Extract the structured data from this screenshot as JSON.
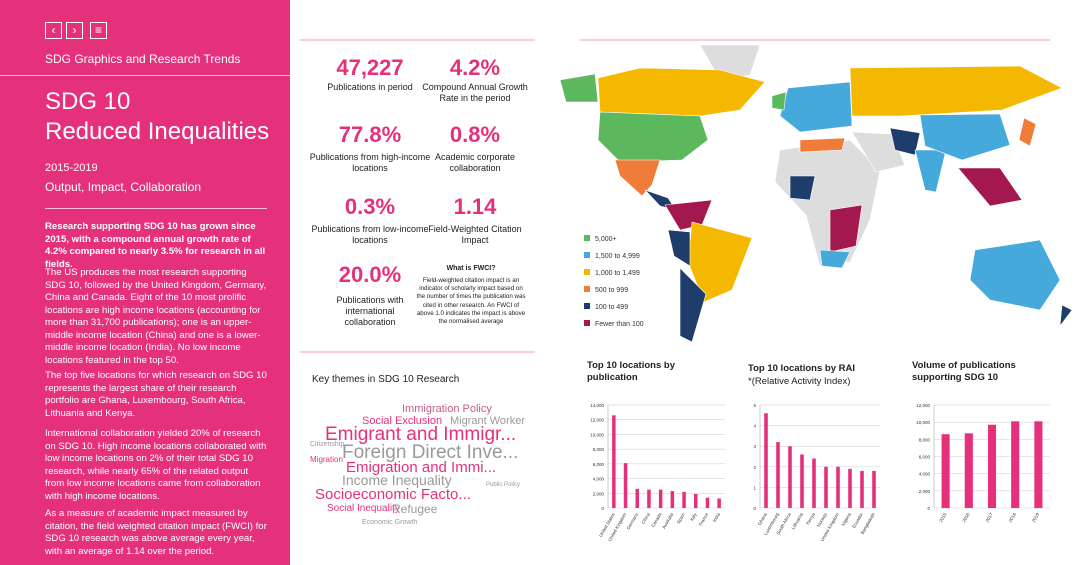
{
  "header": {
    "series": "SDG Graphics and Research Trends",
    "title_line1": "SDG 10",
    "title_line2": "Reduced Inequalities",
    "period": "2015-2019",
    "subtitle": "Output, Impact, Collaboration"
  },
  "intro": {
    "lead": "Research supporting SDG 10 has grown since 2015, with a compound annual growth rate of 4.2% compared to nearly 3.5% for research in all fields.",
    "paragraphs": [
      "The US produces the most research supporting SDG 10, followed by the United Kingdom, Germany, China and Canada. Eight of the 10 most prolific locations are high income locations (accounting for more than 31,700 publications); one is an upper-middle income location (China) and one is a lower-middle income location (India). No low income locations featured in the top 50.",
      "The top five locations for which research on SDG 10 represents the largest share of their research portfolio are Ghana, Luxembourg, South Africa, Lithuania and Kenya.",
      "International collaboration yielded 20% of research on SDG 10. High income locations collaborated with low income locations on 2% of their total SDG 10 research, while nearly 65% of the related output from low income locations came from collaboration with high income locations.",
      "As a measure of academic impact measured by citation, the field weighted citation impact (FWCI) for SDG 10 research was above average every year, with an average of 1.14 over the period."
    ]
  },
  "stats": [
    {
      "value": "47,227",
      "label": "Publications in period"
    },
    {
      "value": "4.2%",
      "label": "Compound Annual Growth Rate in the period"
    },
    {
      "value": "77.8%",
      "label": "Publications from high-income locations"
    },
    {
      "value": "0.8%",
      "label": "Academic corporate collaboration"
    },
    {
      "value": "0.3%",
      "label": "Publications from low-income locations"
    },
    {
      "value": "1.14",
      "label": "Field-Weighted Citation Impact"
    },
    {
      "value": "20.0%",
      "label": "Publications with international collaboration"
    }
  ],
  "fwci_note": {
    "title": "What is FWCI?",
    "text": "Field-weighted citation impact is an indicator of scholarly impact based on the number of times the publication was cited in other research. An FWCI of above 1.0 indicates the impact is above the normalised average"
  },
  "map_legend": [
    {
      "label": "5,000+",
      "color": "#5cb85c"
    },
    {
      "label": "1,500 to 4,999",
      "color": "#45a9dc"
    },
    {
      "label": "1,000 to 1,499",
      "color": "#f5b800"
    },
    {
      "label": "500 to 999",
      "color": "#f07c3a"
    },
    {
      "label": "100 to 499",
      "color": "#1f3d6b"
    },
    {
      "label": "Fewer than 100",
      "color": "#a3194f"
    }
  ],
  "word_cloud": {
    "title": "Key themes in SDG 10 Research",
    "words": [
      "Immigration Policy",
      "Social Exclusion",
      "Migrant Worker",
      "Emigrant and Immigr...",
      "Foreign Direct Inve...",
      "Emigration and Immi...",
      "Income Inequality",
      "Socioeconomic Facto...",
      "Social Inequality",
      "Refugee",
      "Migration",
      "Citizenship",
      "Economic Growth",
      "Public Policy"
    ]
  },
  "chart_data": [
    {
      "type": "bar",
      "title": "Top 10 locations by publication",
      "color": "#e5317c",
      "grid": true,
      "categories": [
        "United States",
        "United Kingdom",
        "Germany",
        "China",
        "Canada",
        "Australia",
        "Spain",
        "Italy",
        "France",
        "India"
      ],
      "values": [
        12600,
        6100,
        2600,
        2500,
        2500,
        2300,
        2200,
        1900,
        1400,
        1300
      ],
      "ylim": [
        0,
        14000
      ],
      "yticks": [
        0,
        {
          "value": 2000,
          "label": "2,000"
        },
        {
          "value": 4000,
          "label": "4,000"
        },
        {
          "value": 6000,
          "label": "6,000"
        },
        {
          "value": 8000,
          "label": "8,000"
        },
        {
          "value": 10000,
          "label": "10,000"
        },
        {
          "value": 12000,
          "label": "12,000"
        },
        {
          "value": 14000,
          "label": "14,000"
        }
      ]
    },
    {
      "type": "bar",
      "title": "Top 10 locations by RAI",
      "subtitle": "*(Relative Activity Index)",
      "color": "#e5317c",
      "grid": true,
      "categories": [
        "Ghana",
        "Luxembourg",
        "South Africa",
        "Lithuania",
        "Kenya",
        "Norway",
        "United Kingdom",
        "Nigeria",
        "Ecuador",
        "Bangladesh"
      ],
      "values": [
        4.6,
        3.2,
        3.0,
        2.6,
        2.4,
        2.0,
        2.0,
        1.9,
        1.8,
        1.8
      ],
      "ylim": [
        0,
        5
      ],
      "yticks": [
        0,
        1,
        2,
        3,
        4,
        5
      ]
    },
    {
      "type": "bar",
      "title": "Volume of publications supporting SDG 10",
      "color": "#e5317c",
      "grid": true,
      "categories": [
        "2015",
        "2016",
        "2017",
        "2018",
        "2019"
      ],
      "values": [
        8600,
        8700,
        9700,
        10100,
        10100
      ],
      "ylim": [
        0,
        12000
      ],
      "yticks": [
        0,
        {
          "value": 2000,
          "label": "2,000"
        },
        {
          "value": 4000,
          "label": "4,000"
        },
        {
          "value": 6000,
          "label": "6,000"
        },
        {
          "value": 8000,
          "label": "8,000"
        },
        {
          "value": 10000,
          "label": "10,000"
        },
        {
          "value": 12000,
          "label": "12,000"
        }
      ]
    }
  ]
}
